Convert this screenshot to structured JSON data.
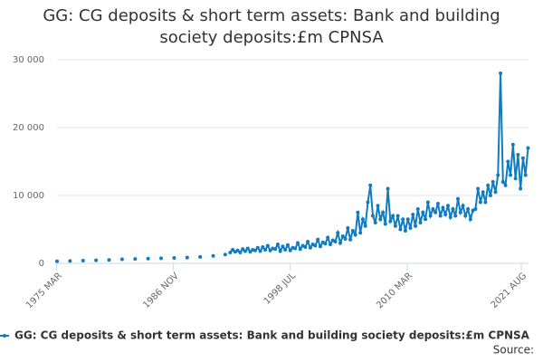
{
  "chart_data": {
    "type": "line",
    "title": "GG: CG deposits & short term assets: Bank and building society deposits:£m CPNSA",
    "source": "Source:",
    "x": [
      1975.2,
      1976.5,
      1977.8,
      1979.1,
      1980.4,
      1981.7,
      1983.0,
      1984.3,
      1985.6,
      1986.9,
      1988.2,
      1989.5,
      1990.8,
      1992.0,
      1992.5,
      1992.75,
      1993,
      1993.25,
      1993.5,
      1993.75,
      1994,
      1994.25,
      1994.5,
      1994.75,
      1995,
      1995.25,
      1995.5,
      1995.75,
      1996,
      1996.25,
      1996.5,
      1996.75,
      1997,
      1997.25,
      1997.5,
      1997.75,
      1998,
      1998.25,
      1998.5,
      1998.75,
      1999,
      1999.25,
      1999.5,
      1999.75,
      2000,
      2000.25,
      2000.5,
      2000.75,
      2001,
      2001.25,
      2001.5,
      2001.75,
      2002,
      2002.25,
      2002.5,
      2002.75,
      2003,
      2003.25,
      2003.5,
      2003.75,
      2004,
      2004.25,
      2004.5,
      2004.75,
      2005,
      2005.25,
      2005.5,
      2005.75,
      2006,
      2006.25,
      2006.5,
      2006.75,
      2007,
      2007.25,
      2007.5,
      2007.75,
      2008,
      2008.25,
      2008.5,
      2008.75,
      2009,
      2009.25,
      2009.5,
      2009.75,
      2010,
      2010.25,
      2010.5,
      2010.75,
      2011,
      2011.25,
      2011.5,
      2011.75,
      2012,
      2012.25,
      2012.5,
      2012.75,
      2013,
      2013.25,
      2013.5,
      2013.75,
      2014,
      2014.25,
      2014.5,
      2014.75,
      2015,
      2015.25,
      2015.5,
      2015.75,
      2016,
      2016.25,
      2016.5,
      2016.75,
      2017,
      2017.25,
      2017.5,
      2017.75,
      2018,
      2018.25,
      2018.5,
      2018.75,
      2019,
      2019.25,
      2019.5,
      2019.75,
      2020,
      2020.25,
      2020.5,
      2020.75,
      2021,
      2021.25,
      2021.5,
      2021.75,
      2022,
      2022.25
    ],
    "series": [
      {
        "name": "GG: CG deposits & short term assets: Bank and building society deposits:£m CPNSA",
        "color": "#0f7cc0",
        "values": [
          300,
          350,
          400,
          450,
          500,
          600,
          650,
          700,
          750,
          800,
          850,
          950,
          1100,
          1300,
          1600,
          2000,
          1700,
          1900,
          1600,
          2100,
          1800,
          2200,
          1700,
          2000,
          1900,
          2300,
          1800,
          2400,
          2000,
          2600,
          1900,
          2200,
          2100,
          2800,
          1800,
          2500,
          2000,
          2700,
          1900,
          2300,
          2200,
          3000,
          2100,
          2600,
          2400,
          3200,
          2300,
          2800,
          2600,
          3500,
          2500,
          3100,
          2900,
          3800,
          2800,
          3400,
          3200,
          4500,
          3000,
          4000,
          3600,
          5200,
          3500,
          4800,
          4200,
          7500,
          4500,
          6500,
          5500,
          9000,
          11500,
          7000,
          6000,
          8500,
          6500,
          7500,
          5800,
          11000,
          6200,
          7000,
          5500,
          7000,
          5000,
          6500,
          4800,
          6500,
          5200,
          7200,
          5500,
          8000,
          6000,
          7500,
          6500,
          9000,
          7000,
          8000,
          7500,
          8800,
          7000,
          8200,
          7200,
          8500,
          6800,
          8000,
          7000,
          9500,
          7500,
          8500,
          7000,
          8000,
          6500,
          7800,
          8000,
          11000,
          9000,
          10500,
          9000,
          11500,
          10000,
          12000,
          10500,
          13000,
          28000,
          12000,
          11500,
          15000,
          13000,
          17500,
          12500,
          16000,
          11000,
          15500,
          13000,
          17000
        ]
      }
    ],
    "xlim": [
      1975.2,
      2022.3
    ],
    "xticks": [
      {
        "value": 1975.17,
        "label": "1975 MAR"
      },
      {
        "value": 1986.83,
        "label": "1986 NOV"
      },
      {
        "value": 1998.5,
        "label": "1998 JUL"
      },
      {
        "value": 2010.17,
        "label": "2010 MAR"
      },
      {
        "value": 2021.58,
        "label": "2021 AUG"
      }
    ],
    "ylim": [
      0,
      30000
    ],
    "yticks": [
      0,
      {
        "value": 10000,
        "label": "10 000"
      },
      {
        "value": 20000,
        "label": "20 000"
      },
      {
        "value": 30000,
        "label": "30 000"
      }
    ],
    "grid": true
  }
}
